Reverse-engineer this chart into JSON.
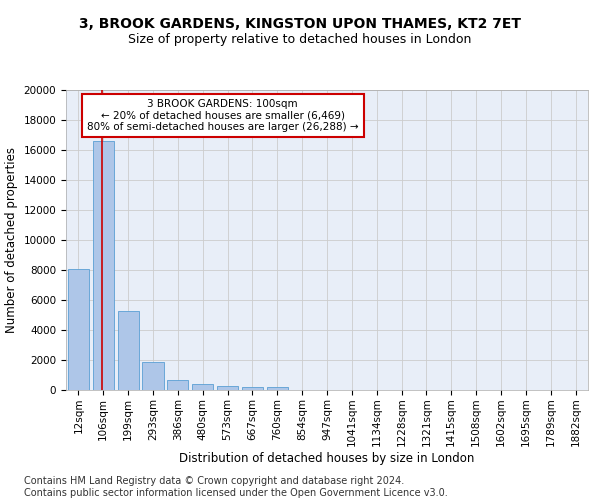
{
  "title1": "3, BROOK GARDENS, KINGSTON UPON THAMES, KT2 7ET",
  "title2": "Size of property relative to detached houses in London",
  "xlabel": "Distribution of detached houses by size in London",
  "ylabel": "Number of detached properties",
  "footnote": "Contains HM Land Registry data © Crown copyright and database right 2024.\nContains public sector information licensed under the Open Government Licence v3.0.",
  "bar_labels": [
    "12sqm",
    "106sqm",
    "199sqm",
    "293sqm",
    "386sqm",
    "480sqm",
    "573sqm",
    "667sqm",
    "760sqm",
    "854sqm",
    "947sqm",
    "1041sqm",
    "1134sqm",
    "1228sqm",
    "1321sqm",
    "1415sqm",
    "1508sqm",
    "1602sqm",
    "1695sqm",
    "1789sqm",
    "1882sqm"
  ],
  "bar_values": [
    8100,
    16600,
    5300,
    1850,
    680,
    370,
    280,
    230,
    200,
    0,
    0,
    0,
    0,
    0,
    0,
    0,
    0,
    0,
    0,
    0,
    0
  ],
  "bar_color": "#aec6e8",
  "bar_edge_color": "#5a9fd4",
  "annotation_box_text": "3 BROOK GARDENS: 100sqm\n← 20% of detached houses are smaller (6,469)\n80% of semi-detached houses are larger (26,288) →",
  "annotation_box_color": "#cc0000",
  "annotation_box_fill": "#ffffff",
  "property_line_color": "#cc0000",
  "ylim": [
    0,
    20000
  ],
  "yticks": [
    0,
    2000,
    4000,
    6000,
    8000,
    10000,
    12000,
    14000,
    16000,
    18000,
    20000
  ],
  "grid_color": "#cccccc",
  "bg_color": "#e8eef8",
  "title_fontsize": 10,
  "subtitle_fontsize": 9,
  "axis_label_fontsize": 8.5,
  "tick_fontsize": 7.5,
  "footnote_fontsize": 7
}
